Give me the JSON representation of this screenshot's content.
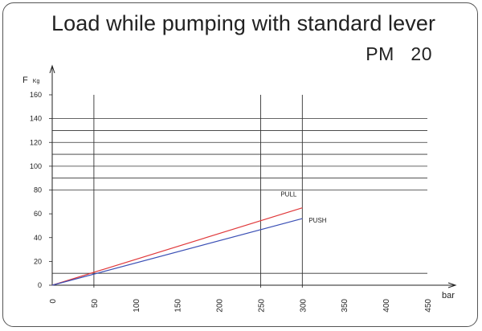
{
  "title": "Load while pumping with standard lever",
  "subtitle": "PM   20",
  "colors": {
    "pull": "#e0393b",
    "push": "#3a4fb5",
    "grid": "#333333"
  },
  "chart_data": {
    "type": "line",
    "ylabel_main": "F",
    "ylabel_unit": "Kg",
    "xlabel": "bar",
    "xlim": [
      0,
      450
    ],
    "ylim": [
      0,
      160
    ],
    "x_ticks": [
      0,
      50,
      100,
      150,
      200,
      250,
      300,
      350,
      400,
      450
    ],
    "y_ticks": [
      0,
      20,
      40,
      60,
      80,
      100,
      120,
      140,
      160
    ],
    "x_tick_labels": [
      "0",
      "50",
      "100",
      "150",
      "200",
      "250",
      "300",
      "350",
      "400",
      "450"
    ],
    "y_tick_labels": [
      "0",
      "20",
      "40",
      "60",
      "80",
      "100",
      "120",
      "140",
      "160"
    ],
    "h_gridlines": [
      10,
      80,
      90,
      100,
      110,
      120,
      130,
      140
    ],
    "v_gridlines": [
      50,
      250,
      300
    ],
    "grid": true,
    "series": [
      {
        "name": "PULL",
        "x": [
          0,
          300
        ],
        "y": [
          0,
          65
        ]
      },
      {
        "name": "PUSH",
        "x": [
          0,
          300
        ],
        "y": [
          0,
          56
        ]
      }
    ]
  }
}
